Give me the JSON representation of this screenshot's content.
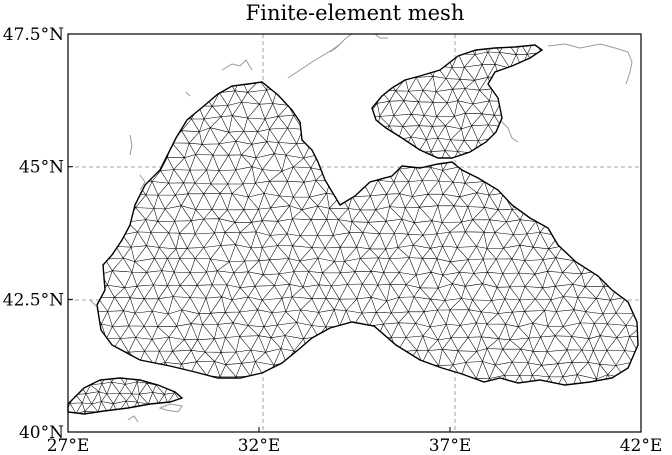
{
  "title": "Finite-element mesh",
  "map": {
    "lon_range": [
      27,
      42
    ],
    "lat_range": [
      40,
      47.5
    ],
    "x_ticks": [
      {
        "value": 27,
        "label": "27°E"
      },
      {
        "value": 32,
        "label": "32°E"
      },
      {
        "value": 37,
        "label": "37°E"
      },
      {
        "value": 42,
        "label": "42°E"
      }
    ],
    "y_ticks": [
      {
        "value": 40,
        "label": "40°N"
      },
      {
        "value": 42.5,
        "label": "42.5°N"
      },
      {
        "value": 45,
        "label": "45°N"
      },
      {
        "value": 47.5,
        "label": "47.5°N"
      }
    ],
    "grid": true,
    "mesh_color": "#000000",
    "coastline_color": "#9a9a9a"
  }
}
